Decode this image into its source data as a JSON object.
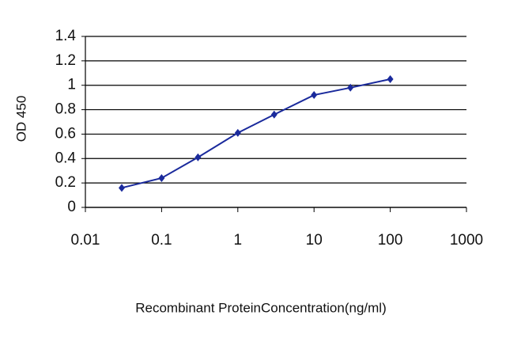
{
  "chart_data": {
    "type": "line",
    "x_label": "Recombinant ProteinConcentration(ng/ml)",
    "y_label": "OD 450",
    "x": [
      0.03,
      0.1,
      0.3,
      1,
      3,
      10,
      30,
      100
    ],
    "series": [
      {
        "color": "#1a2a9c",
        "values": [
          0.16,
          0.24,
          0.41,
          0.61,
          0.76,
          0.92,
          0.98,
          1.05
        ]
      }
    ],
    "xlim": [
      0.01,
      1000
    ],
    "xticks": [
      0.01,
      0.1,
      1,
      10,
      100,
      1000
    ],
    "xscale": "log",
    "ylim": [
      0,
      1.4
    ],
    "yticks": [
      0,
      0.2,
      0.4,
      0.6,
      0.8,
      1,
      1.2,
      1.4
    ],
    "grid": true
  }
}
